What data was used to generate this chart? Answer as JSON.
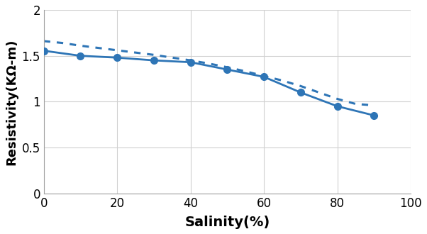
{
  "solid_x": [
    0,
    10,
    20,
    30,
    40,
    50,
    60,
    70,
    80,
    90
  ],
  "solid_y": [
    1.555,
    1.5,
    1.48,
    1.45,
    1.43,
    1.35,
    1.27,
    1.1,
    0.95,
    0.85
  ],
  "dotted_x": [
    0,
    5,
    10,
    15,
    20,
    25,
    30,
    35,
    40,
    45,
    50,
    55,
    60,
    65,
    70,
    75,
    80,
    85,
    90
  ],
  "dotted_y": [
    1.66,
    1.64,
    1.61,
    1.585,
    1.56,
    1.535,
    1.51,
    1.48,
    1.45,
    1.415,
    1.375,
    1.33,
    1.28,
    1.23,
    1.17,
    1.1,
    1.03,
    0.975,
    0.96
  ],
  "line_color": "#2E75B6",
  "xlim": [
    0,
    100
  ],
  "ylim": [
    0,
    2
  ],
  "xticks": [
    0,
    20,
    40,
    60,
    80,
    100
  ],
  "ytick_vals": [
    0,
    0.5,
    1,
    1.5,
    2
  ],
  "ytick_labels": [
    "0",
    "0.5",
    "1",
    "1.5",
    "2"
  ],
  "xlabel": "Salinity(%)",
  "ylabel": "Resistivity(KΩ-m)",
  "xlabel_fontsize": 14,
  "ylabel_fontsize": 13,
  "tick_fontsize": 12,
  "marker": "o",
  "markersize": 7,
  "linewidth": 2.0,
  "dotted_linewidth": 2.2,
  "grid_color": "#D0D0D0",
  "background_color": "#FFFFFF"
}
